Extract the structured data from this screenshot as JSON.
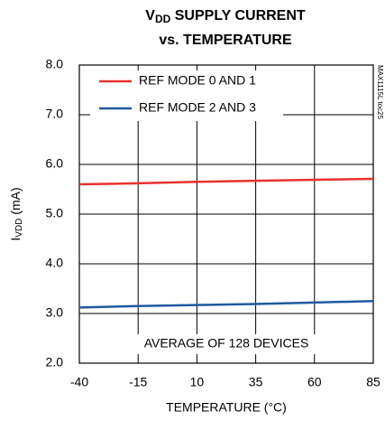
{
  "chart_data": {
    "type": "line",
    "title": {
      "main": "V",
      "sub": "DD",
      "rest": " SUPPLY CURRENT",
      "line2": "vs. TEMPERATURE"
    },
    "xlabel": "TEMPERATURE (°C)",
    "ylabel": {
      "main": "I",
      "sub": "VDD",
      "rest": " (mA)"
    },
    "code": "MAX1115L toc25",
    "annotation": "AVERAGE OF 128 DEVICES",
    "x": [
      -40,
      -15,
      10,
      35,
      60,
      85
    ],
    "series": [
      {
        "name": "REF MODE 0 AND 1",
        "color": "#e8322e",
        "values": [
          5.6,
          5.62,
          5.65,
          5.67,
          5.69,
          5.71
        ]
      },
      {
        "name": "REF MODE 2 AND 3",
        "color": "#1f5aa0",
        "values": [
          3.12,
          3.15,
          3.17,
          3.19,
          3.22,
          3.25
        ]
      }
    ],
    "xlim": [
      -40,
      85
    ],
    "xticks": [
      -40,
      -15,
      10,
      35,
      60,
      85
    ],
    "ylim": [
      2,
      8
    ],
    "yticks": [
      {
        "value": 2,
        "label": "2.0"
      },
      {
        "value": 3,
        "label": "3.0"
      },
      {
        "value": 4,
        "label": "4.0"
      },
      {
        "value": 5,
        "label": "5.0"
      },
      {
        "value": 6,
        "label": "6.0"
      },
      {
        "value": 7,
        "label": "7.0"
      },
      {
        "value": 8,
        "label": "8.0"
      }
    ],
    "grid": true,
    "legend": "upper left"
  }
}
